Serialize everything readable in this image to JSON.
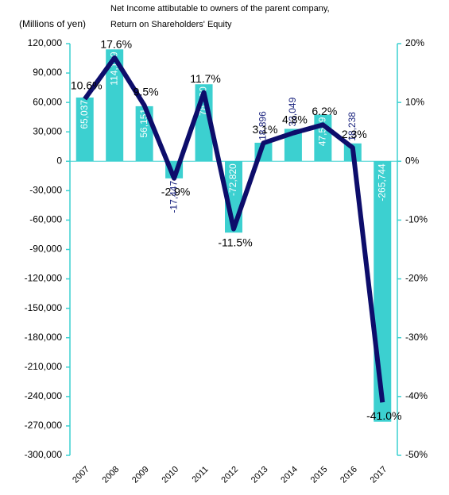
{
  "chart_data": {
    "type": "bar-line",
    "title": [
      "Net Income attibutable to owners of the parent company,",
      "Return on Shareholders' Equity"
    ],
    "y_label": "(Millions of yen)",
    "categories": [
      "2007",
      "2008",
      "2009",
      "2010",
      "2011",
      "2012",
      "2013",
      "2014",
      "2015",
      "2016",
      "2017"
    ],
    "series": [
      {
        "name": "Net Income",
        "type": "bar",
        "color": "#3cd0d0",
        "label_color": "#1a237e",
        "values": [
          65037,
          114139,
          56151,
          -17447,
          78530,
          -72820,
          18896,
          33049,
          47539,
          18238,
          -265744
        ],
        "value_labels": [
          "65,037",
          "114,139",
          "56,151",
          "-17,447",
          "78,530",
          "-72,820",
          "18,896",
          "33,049",
          "47,539",
          "18,238",
          "-265,744"
        ]
      },
      {
        "name": "ROE",
        "type": "line",
        "axis": "y2",
        "color": "#0d0d6b",
        "values": [
          10.6,
          17.6,
          9.5,
          -2.9,
          11.7,
          -11.5,
          3.1,
          4.8,
          6.2,
          2.3,
          -41.0
        ],
        "value_labels": [
          "10.6%",
          "17.6%",
          "9.5%",
          "-2.9%",
          "11.7%",
          "-11.5%",
          "3.1%",
          "4.8%",
          "6.2%",
          "2.3%",
          "-41.0%"
        ]
      }
    ],
    "ylim": [
      -300000,
      120000
    ],
    "yticks": [
      {
        "value": -300000,
        "label": "-300,000"
      },
      {
        "value": -270000,
        "label": "-270,000"
      },
      {
        "value": -240000,
        "label": "-240,000"
      },
      {
        "value": -210000,
        "label": "-210,000"
      },
      {
        "value": -180000,
        "label": "-180,000"
      },
      {
        "value": -150000,
        "label": "-150,000"
      },
      {
        "value": -120000,
        "label": "-120,000"
      },
      {
        "value": -90000,
        "label": "-90,000"
      },
      {
        "value": -60000,
        "label": "-60,000"
      },
      {
        "value": -30000,
        "label": "-30,000"
      },
      0,
      {
        "value": 30000,
        "label": "30,000"
      },
      {
        "value": 60000,
        "label": "60,000"
      },
      {
        "value": 90000,
        "label": "90,000"
      },
      {
        "value": 120000,
        "label": "120,000"
      }
    ],
    "y2lim": [
      -50,
      20
    ],
    "y2ticks": [
      {
        "value": -50,
        "label": "-50%"
      },
      {
        "value": -40,
        "label": "-40%"
      },
      {
        "value": -30,
        "label": "-30%"
      },
      {
        "value": -20,
        "label": "-20%"
      },
      {
        "value": -10,
        "label": "-10%"
      },
      {
        "value": 0,
        "label": "0%"
      },
      {
        "value": 10,
        "label": "10%"
      },
      {
        "value": 20,
        "label": "20%"
      }
    ]
  }
}
